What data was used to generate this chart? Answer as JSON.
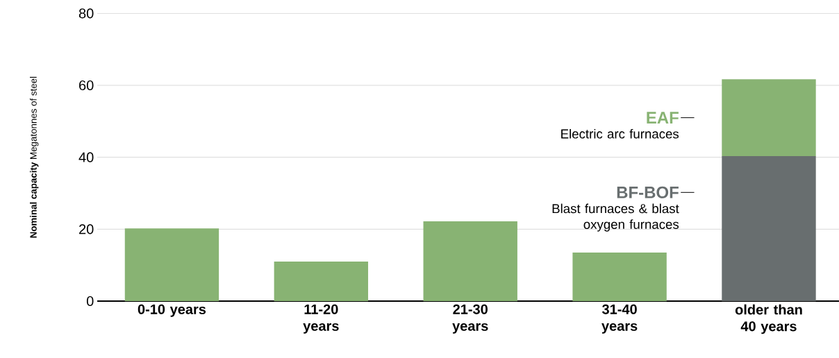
{
  "chart_data": {
    "type": "bar",
    "stacked": true,
    "ylabel": "**Nominal capacity** Megatonnes of steel",
    "categories": [
      "0-10 years",
      "11-20 years",
      "21-30 years",
      "31-40 years",
      "older than 40 years"
    ],
    "series": [
      {
        "name": "BF-BOF",
        "color": "#686e6f",
        "values": [
          null,
          null,
          null,
          null,
          40.3
        ]
      },
      {
        "name": "EAF",
        "color": "#88b373",
        "values": [
          20.2,
          11.0,
          22.2,
          13.5,
          21.4
        ]
      }
    ],
    "annotations": [
      "Electric arc furnaces",
      "Blast furnaces & blast oxygen furnaces"
    ],
    "ylim": [
      0,
      80
    ],
    "yticks": [
      0,
      20,
      40,
      60,
      80
    ],
    "grid": "y"
  }
}
